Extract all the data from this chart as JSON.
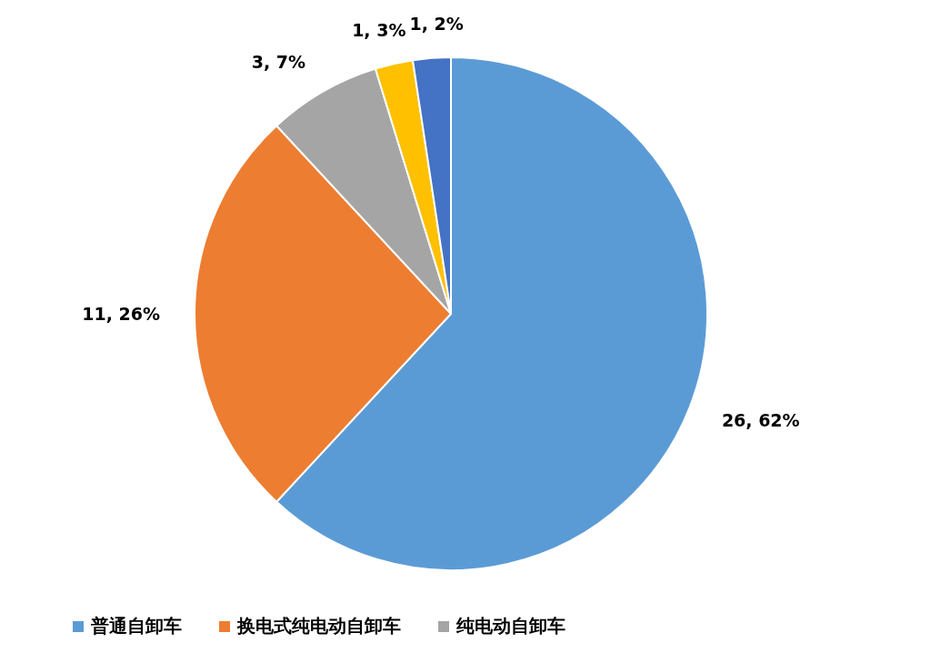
{
  "chart_data": {
    "type": "pie",
    "categories": [
      "普通自卸车",
      "换电式纯电动自卸车",
      "纯电动自卸车",
      null,
      null
    ],
    "values": [
      26,
      11,
      3,
      1,
      1
    ],
    "colors": [
      "#5b9bd5",
      "#ed7d31",
      "#a5a5a5",
      "#ffc000",
      "#4472c4"
    ],
    "value_labels": [
      "26, 62%",
      "11, 26%",
      "3, 7%",
      "1, 3%",
      "1, 2%"
    ],
    "legend": "bottom"
  }
}
